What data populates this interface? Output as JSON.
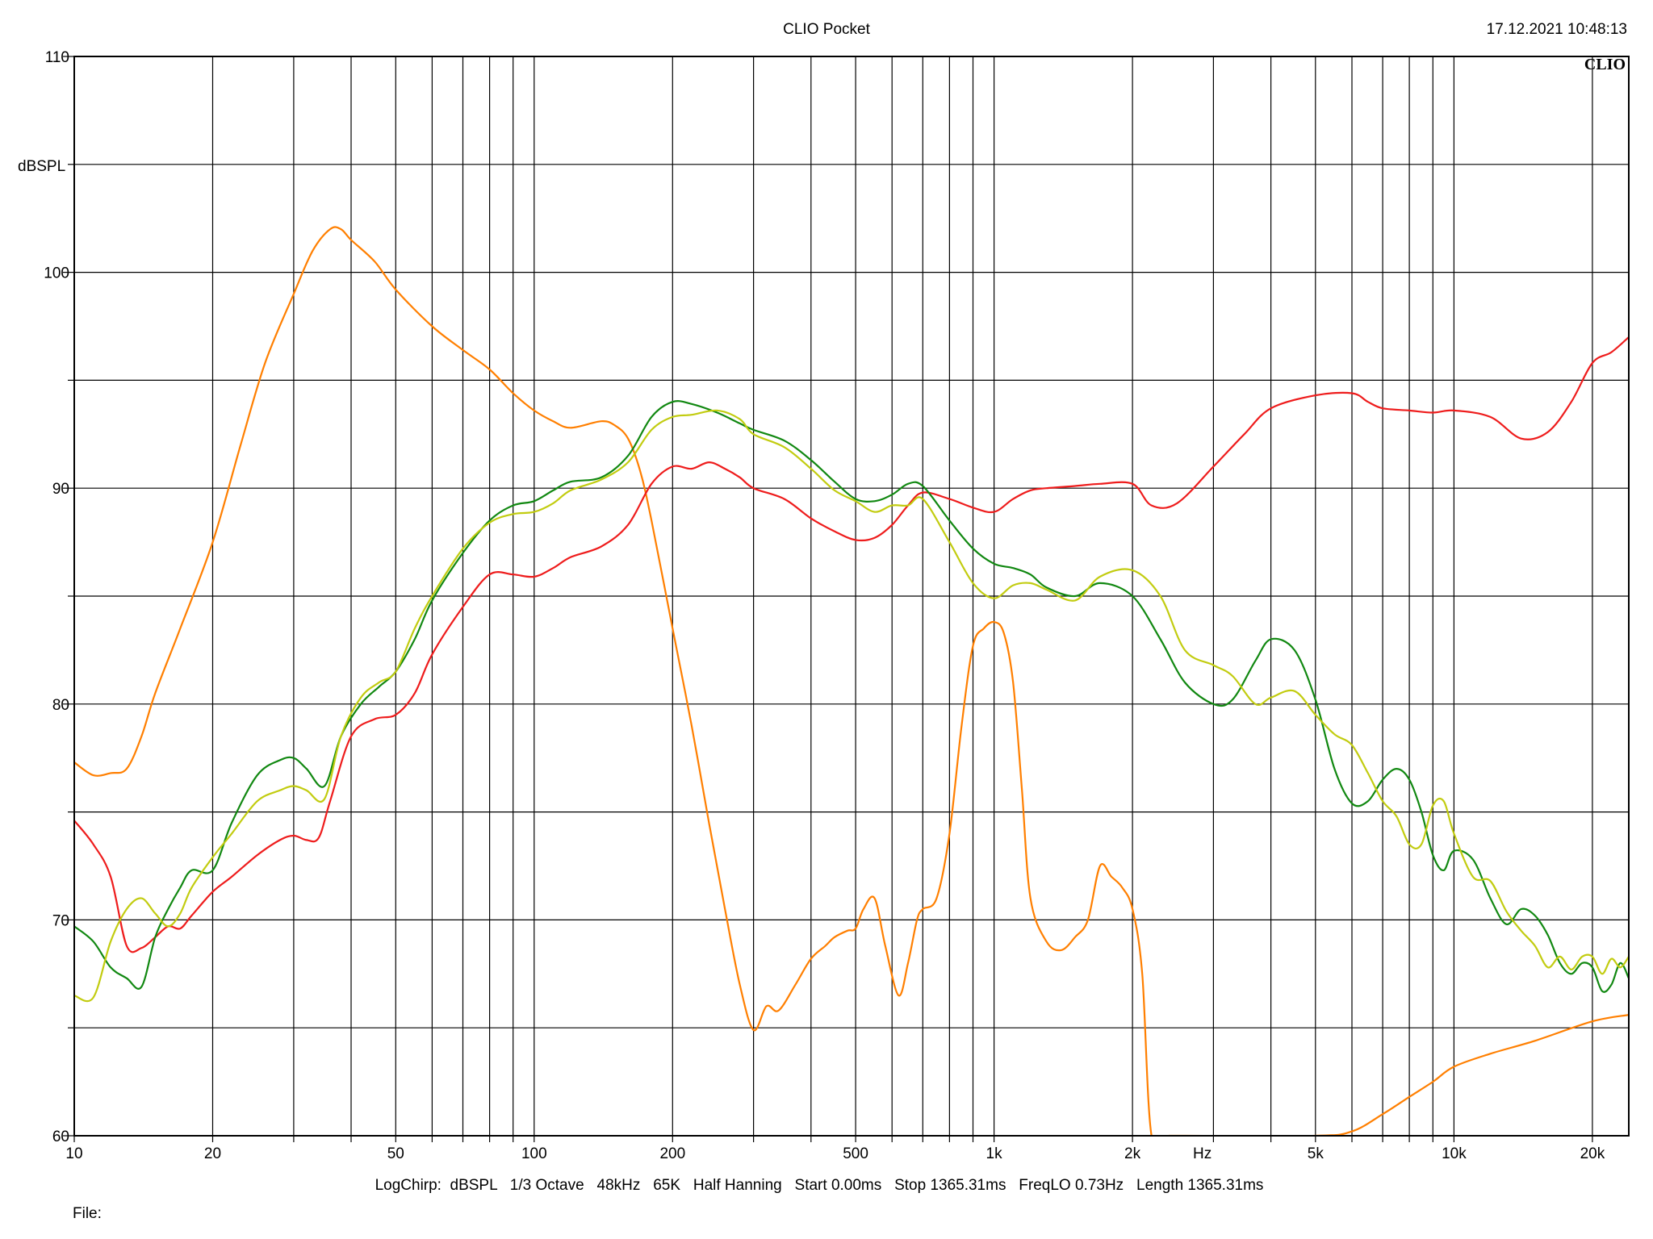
{
  "header": {
    "title": "CLIO Pocket",
    "timestamp": "17.12.2021 10:48:13",
    "logo": "CLIO"
  },
  "footer": {
    "settings": "LogChirp:  dBSPL   1/3 Octave   48kHz   65K   Half Hanning   Start 0.00ms   Stop 1365.31ms   FreqLO 0.73Hz   Length 1365.31ms",
    "file_label": "File:"
  },
  "chart_data": {
    "type": "line",
    "title": "CLIO Pocket",
    "xlabel": "Hz",
    "ylabel": "dBSPL",
    "xscale": "log",
    "xlim": [
      10,
      24000
    ],
    "ylim": [
      60,
      110
    ],
    "grid": true,
    "x_ticks": [
      {
        "v": 10,
        "label": "10"
      },
      {
        "v": 20,
        "label": "20"
      },
      {
        "v": 50,
        "label": "50"
      },
      {
        "v": 100,
        "label": "100"
      },
      {
        "v": 200,
        "label": "200"
      },
      {
        "v": 500,
        "label": "500"
      },
      {
        "v": 1000,
        "label": "1k"
      },
      {
        "v": 2000,
        "label": "2k"
      },
      {
        "v": 5000,
        "label": "5k"
      },
      {
        "v": 10000,
        "label": "10k"
      },
      {
        "v": 20000,
        "label": "20k"
      }
    ],
    "y_ticks": [
      {
        "v": 60,
        "label": "60"
      },
      {
        "v": 70,
        "label": "70"
      },
      {
        "v": 80,
        "label": "80"
      },
      {
        "v": 90,
        "label": "90"
      },
      {
        "v": 100,
        "label": "100"
      },
      {
        "v": 110,
        "label": "110"
      }
    ],
    "series": [
      {
        "color": "#ff7f00",
        "x": [
          10,
          11,
          12,
          13,
          14,
          15,
          17,
          20,
          23,
          26,
          30,
          33,
          36,
          38,
          40,
          45,
          50,
          60,
          70,
          80,
          90,
          100,
          110,
          120,
          140,
          150,
          160,
          170,
          180,
          200,
          220,
          240,
          260,
          280,
          300,
          320,
          340,
          370,
          400,
          430,
          450,
          480,
          500,
          520,
          550,
          580,
          620,
          650,
          680,
          700,
          750,
          800,
          850,
          900,
          950,
          1000,
          1050,
          1100,
          1150,
          1200,
          1300,
          1400,
          1500,
          1600,
          1700,
          1800,
          1900,
          2000,
          2100,
          2200,
          2400,
          2600,
          5000,
          6000,
          7000,
          8000,
          9000,
          10000,
          12000,
          15000,
          20000,
          24000
        ],
        "values": [
          77.3,
          76.7,
          76.8,
          77.0,
          78.5,
          80.5,
          83.5,
          87.5,
          92.0,
          95.8,
          99.0,
          101.0,
          102.0,
          102.0,
          101.5,
          100.5,
          99.2,
          97.5,
          96.4,
          95.5,
          94.4,
          93.6,
          93.1,
          92.8,
          93.1,
          92.9,
          92.3,
          90.8,
          88.5,
          83.5,
          79.0,
          74.5,
          70.5,
          67.0,
          64.9,
          66.0,
          65.8,
          67.0,
          68.2,
          68.8,
          69.2,
          69.5,
          69.6,
          70.5,
          71.0,
          68.8,
          66.5,
          68.0,
          70.0,
          70.5,
          71.0,
          74.0,
          79.0,
          82.7,
          83.5,
          83.8,
          83.3,
          81.0,
          76.0,
          71.0,
          69.0,
          68.6,
          69.2,
          70.0,
          72.5,
          72.0,
          71.5,
          70.5,
          67.5,
          60.0,
          60.0,
          60.0,
          60.0,
          60.2,
          61.0,
          61.8,
          62.5,
          63.2,
          63.8,
          64.4,
          65.3,
          65.6
        ]
      },
      {
        "color": "#ee1c1c",
        "x": [
          10,
          11,
          12,
          13,
          14,
          15,
          16,
          17,
          18,
          20,
          22,
          25,
          28,
          30,
          32,
          34,
          36,
          40,
          45,
          50,
          55,
          60,
          70,
          80,
          90,
          100,
          110,
          120,
          140,
          160,
          180,
          200,
          220,
          240,
          260,
          280,
          300,
          350,
          400,
          450,
          500,
          550,
          600,
          650,
          700,
          800,
          900,
          1000,
          1100,
          1200,
          1300,
          1500,
          1700,
          2000,
          2200,
          2500,
          3000,
          3500,
          4000,
          5000,
          6000,
          6500,
          7000,
          8000,
          9000,
          10000,
          12000,
          14000,
          16000,
          18000,
          20000,
          22000,
          24000
        ],
        "values": [
          74.6,
          73.5,
          72.0,
          68.8,
          68.7,
          69.2,
          69.7,
          69.6,
          70.2,
          71.3,
          72.0,
          73.0,
          73.7,
          73.9,
          73.7,
          73.8,
          75.5,
          78.5,
          79.3,
          79.5,
          80.5,
          82.3,
          84.5,
          86.0,
          86.0,
          85.9,
          86.3,
          86.8,
          87.3,
          88.3,
          90.2,
          91.0,
          90.9,
          91.2,
          90.9,
          90.5,
          90.0,
          89.5,
          88.6,
          88.0,
          87.6,
          87.7,
          88.3,
          89.2,
          89.8,
          89.5,
          89.1,
          88.9,
          89.5,
          89.9,
          90.0,
          90.1,
          90.2,
          90.2,
          89.2,
          89.3,
          91.0,
          92.5,
          93.7,
          94.3,
          94.4,
          94.0,
          93.7,
          93.6,
          93.5,
          93.6,
          93.3,
          92.3,
          92.6,
          94.0,
          95.8,
          96.3,
          97.0
        ]
      },
      {
        "color": "#118811",
        "x": [
          10,
          11,
          12,
          13,
          14,
          15,
          16,
          17,
          18,
          20,
          22,
          25,
          28,
          30,
          32,
          35,
          38,
          42,
          46,
          50,
          55,
          60,
          70,
          80,
          90,
          100,
          110,
          120,
          140,
          160,
          180,
          200,
          220,
          250,
          280,
          300,
          350,
          400,
          450,
          500,
          550,
          600,
          650,
          700,
          800,
          900,
          1000,
          1100,
          1200,
          1300,
          1500,
          1700,
          2000,
          2300,
          2600,
          3000,
          3300,
          3700,
          4000,
          4500,
          5000,
          5500,
          6000,
          6500,
          7000,
          7500,
          8000,
          8500,
          9000,
          9500,
          10000,
          11000,
          12000,
          13000,
          14000,
          15000,
          16000,
          17000,
          18000,
          19000,
          20000,
          21000,
          22000,
          23000,
          24000
        ],
        "values": [
          69.7,
          69.0,
          67.8,
          67.3,
          66.9,
          69.2,
          70.5,
          71.5,
          72.3,
          72.3,
          74.5,
          76.7,
          77.4,
          77.5,
          77.0,
          76.2,
          78.5,
          80.0,
          80.8,
          81.5,
          83.0,
          84.8,
          87.0,
          88.5,
          89.2,
          89.4,
          89.9,
          90.3,
          90.5,
          91.5,
          93.3,
          94.0,
          93.9,
          93.5,
          93.0,
          92.7,
          92.2,
          91.3,
          90.3,
          89.5,
          89.4,
          89.7,
          90.2,
          90.1,
          88.5,
          87.2,
          86.5,
          86.3,
          86.0,
          85.4,
          85.0,
          85.6,
          85.0,
          83.0,
          81.0,
          80.0,
          80.2,
          82.0,
          83.0,
          82.5,
          80.2,
          77.0,
          75.4,
          75.5,
          76.5,
          77.0,
          76.5,
          75.0,
          73.0,
          72.3,
          73.2,
          72.8,
          71.0,
          69.8,
          70.5,
          70.2,
          69.3,
          68.0,
          67.5,
          68.0,
          67.8,
          66.7,
          67.0,
          68.0,
          67.3
        ]
      },
      {
        "color": "#c2cc10",
        "x": [
          10,
          11,
          12,
          13,
          14,
          15,
          16,
          17,
          18,
          20,
          22,
          25,
          28,
          30,
          32,
          35,
          38,
          42,
          46,
          50,
          55,
          60,
          70,
          80,
          90,
          100,
          110,
          120,
          140,
          160,
          180,
          200,
          220,
          250,
          280,
          300,
          350,
          400,
          450,
          500,
          550,
          600,
          650,
          700,
          800,
          900,
          1000,
          1100,
          1200,
          1300,
          1500,
          1700,
          2000,
          2300,
          2600,
          3000,
          3300,
          3700,
          4000,
          4500,
          5000,
          5500,
          6000,
          6500,
          7000,
          7500,
          8000,
          8500,
          9000,
          9500,
          10000,
          11000,
          12000,
          13000,
          14000,
          15000,
          16000,
          17000,
          18000,
          19000,
          20000,
          21000,
          22000,
          23000,
          24000
        ],
        "values": [
          66.5,
          66.4,
          69.0,
          70.5,
          71.0,
          70.3,
          69.7,
          70.3,
          71.5,
          72.9,
          74.0,
          75.5,
          76.0,
          76.2,
          76.0,
          75.6,
          78.5,
          80.3,
          81.0,
          81.5,
          83.5,
          85.0,
          87.2,
          88.4,
          88.8,
          88.9,
          89.3,
          89.9,
          90.4,
          91.2,
          92.7,
          93.3,
          93.4,
          93.6,
          93.2,
          92.5,
          91.9,
          90.9,
          89.9,
          89.4,
          88.9,
          89.2,
          89.2,
          89.5,
          87.5,
          85.6,
          84.9,
          85.5,
          85.6,
          85.3,
          84.8,
          85.9,
          86.2,
          85.0,
          82.5,
          81.8,
          81.3,
          80.0,
          80.3,
          80.6,
          79.5,
          78.6,
          78.1,
          76.8,
          75.5,
          74.8,
          73.5,
          73.5,
          75.3,
          75.5,
          74.0,
          72.0,
          71.8,
          70.4,
          69.5,
          68.8,
          67.8,
          68.3,
          67.7,
          68.3,
          68.3,
          67.5,
          68.2,
          67.8,
          68.3
        ]
      }
    ]
  }
}
